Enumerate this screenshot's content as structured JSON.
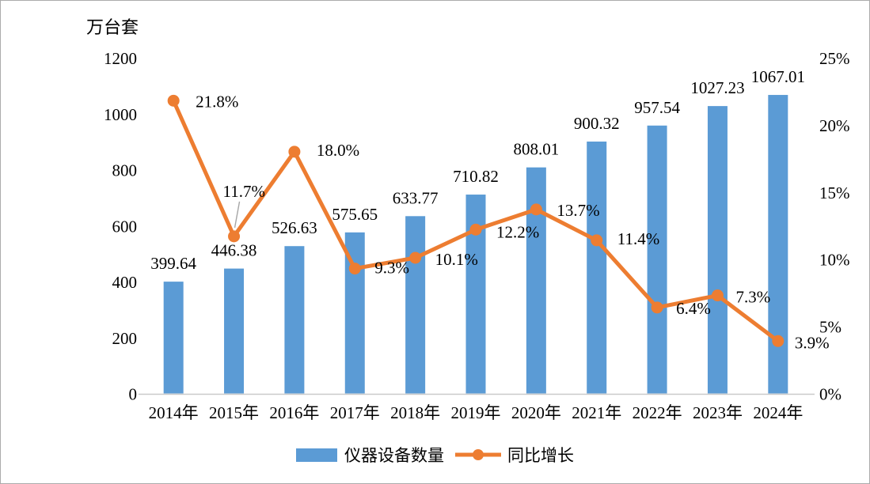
{
  "chart_data": {
    "type": "bar+line",
    "unit_label": "万台套",
    "categories": [
      "2014年",
      "2015年",
      "2016年",
      "2017年",
      "2018年",
      "2019年",
      "2020年",
      "2021年",
      "2022年",
      "2023年",
      "2024年"
    ],
    "series": [
      {
        "name": "仪器设备数量",
        "type": "bar",
        "axis": "left",
        "color": "#5B9BD5",
        "values": [
          399.64,
          446.38,
          526.63,
          575.65,
          633.77,
          710.82,
          808.01,
          900.32,
          957.54,
          1027.23,
          1067.01
        ],
        "labels": [
          "399.64",
          "446.38",
          "526.63",
          "575.65",
          "633.77",
          "710.82",
          "808.01",
          "900.32",
          "957.54",
          "1027.23",
          "1067.01"
        ]
      },
      {
        "name": "同比增长",
        "type": "line",
        "axis": "right",
        "color": "#ED7D31",
        "values": [
          21.8,
          11.7,
          18.0,
          9.3,
          10.1,
          12.2,
          13.7,
          11.4,
          6.4,
          7.3,
          3.9
        ],
        "labels": [
          "21.8%",
          "11.7%",
          "18.0%",
          "9.3%",
          "10.1%",
          "12.2%",
          "13.7%",
          "11.4%",
          "6.4%",
          "7.3%",
          "3.9%"
        ]
      }
    ],
    "left_axis": {
      "ticks": [
        "0",
        "200",
        "400",
        "600",
        "800",
        "1000",
        "1200"
      ],
      "min": 0,
      "max": 1200,
      "grid": false
    },
    "right_axis": {
      "ticks": [
        "0%",
        "5%",
        "10%",
        "15%",
        "20%",
        "25%"
      ],
      "min": 0,
      "max": 25,
      "grid": false
    },
    "legend_position": "bottom-center"
  },
  "colors": {
    "bar": "#5B9BD5",
    "line": "#ED7D31",
    "axis_line": "#c9c9c9",
    "leader_line": "#a6a6a6",
    "text": "#000000"
  }
}
